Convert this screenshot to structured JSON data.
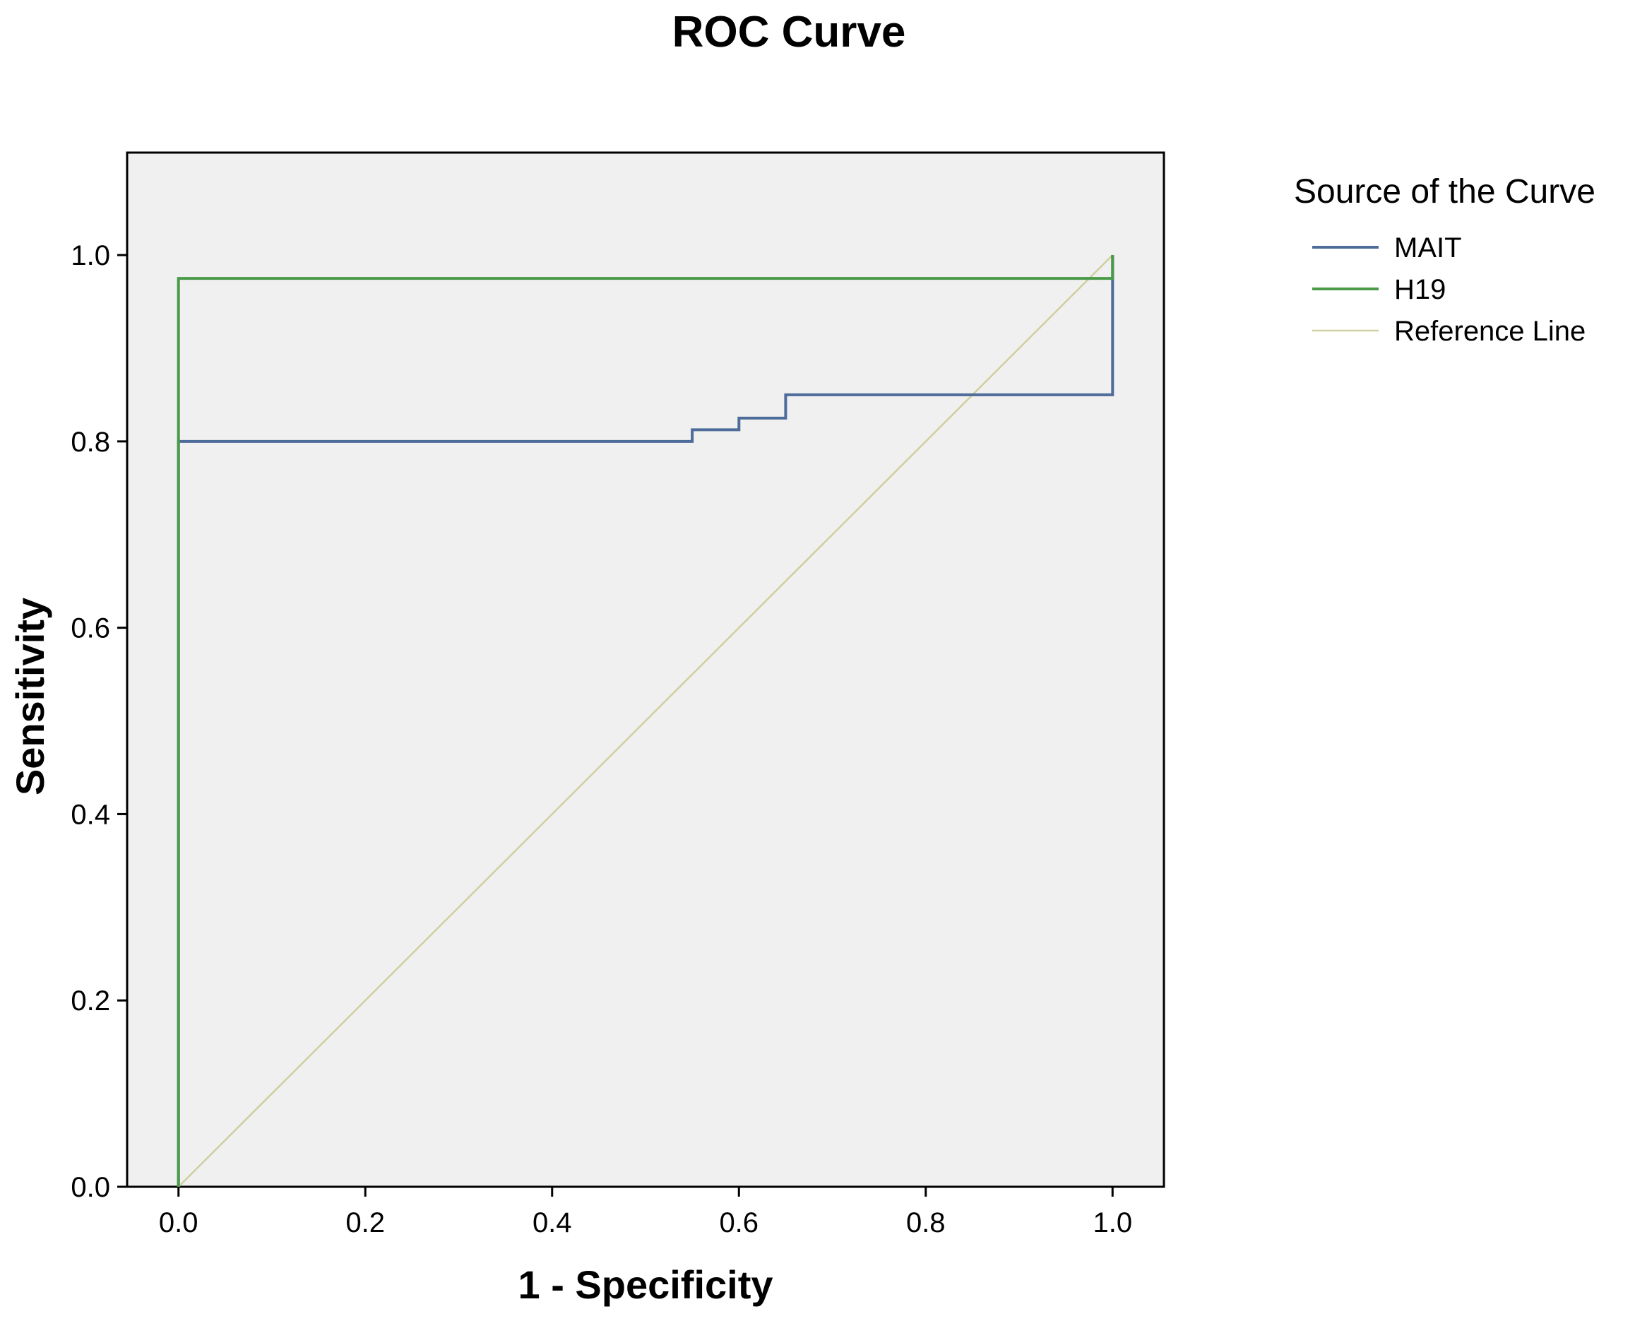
{
  "chart_data": {
    "type": "line",
    "title": "ROC Curve",
    "xlabel": "1 - Specificity",
    "ylabel": "Sensitivity",
    "xlim": [
      -0.055,
      1.055
    ],
    "ylim": [
      0.0,
      1.11
    ],
    "x_ticks": [
      "0.0",
      "0.2",
      "0.4",
      "0.6",
      "0.8",
      "1.0"
    ],
    "x_tick_values": [
      0.0,
      0.2,
      0.4,
      0.6,
      0.8,
      1.0
    ],
    "y_ticks": [
      "0.0",
      "0.2",
      "0.4",
      "0.6",
      "0.8",
      "1.0"
    ],
    "y_tick_values": [
      0.0,
      0.2,
      0.4,
      0.6,
      0.8,
      1.0
    ],
    "grid": false,
    "legend": {
      "title": "Source of the Curve",
      "placement": "right"
    },
    "series": [
      {
        "name": "MAIT",
        "color": "#4e6c9a",
        "x": [
          0.0,
          0.0,
          0.55,
          0.55,
          0.6,
          0.6,
          0.65,
          0.65,
          1.0,
          1.0
        ],
        "y": [
          0.0,
          0.8,
          0.8,
          0.8125,
          0.8125,
          0.825,
          0.825,
          0.85,
          0.85,
          1.0
        ]
      },
      {
        "name": "H19",
        "color": "#4a9a4a",
        "x": [
          0.0,
          0.0,
          1.0,
          1.0
        ],
        "y": [
          0.0,
          0.975,
          0.975,
          1.0
        ]
      },
      {
        "name": "Reference Line",
        "color": "#cfcf9f",
        "x": [
          0.0,
          1.0
        ],
        "y": [
          0.0,
          1.0
        ]
      }
    ]
  }
}
